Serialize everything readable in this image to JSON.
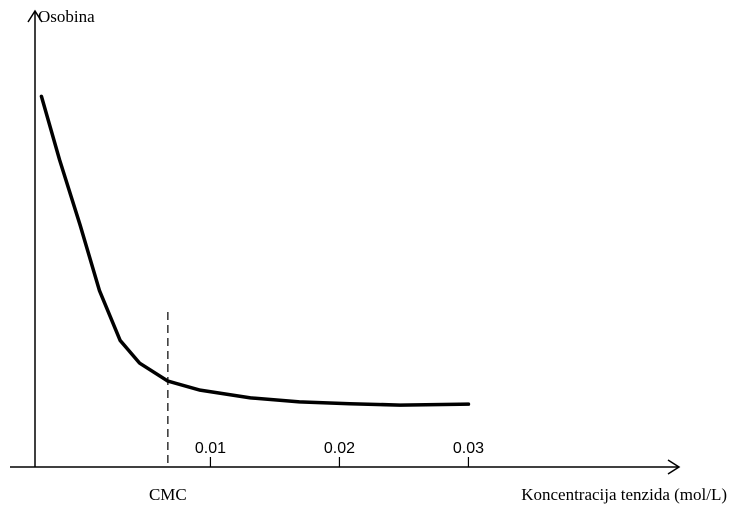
{
  "chart_data": {
    "type": "line",
    "y_label": "Osobina",
    "x_label": "Koncentracija tenzida (mol/L)",
    "x": [
      -0.0031,
      -0.0017,
      -0.0001,
      0.0014,
      0.003,
      0.0045,
      0.0067,
      0.0092,
      0.0131,
      0.0169,
      0.0208,
      0.0247,
      0.03
    ],
    "series": [
      {
        "color": "#000000",
        "values": [
          82,
          68,
          53.5,
          39,
          28,
          23,
          19,
          17,
          15.3,
          14.4,
          14,
          13.7,
          13.9
        ]
      }
    ],
    "xlim": [
      -0.0036,
      0.0464
    ],
    "ylim": [
      0,
      100
    ],
    "xticks": [
      0.01,
      0.02,
      0.03
    ],
    "cmc": {
      "label": "CMC",
      "x": 0.0067
    }
  }
}
